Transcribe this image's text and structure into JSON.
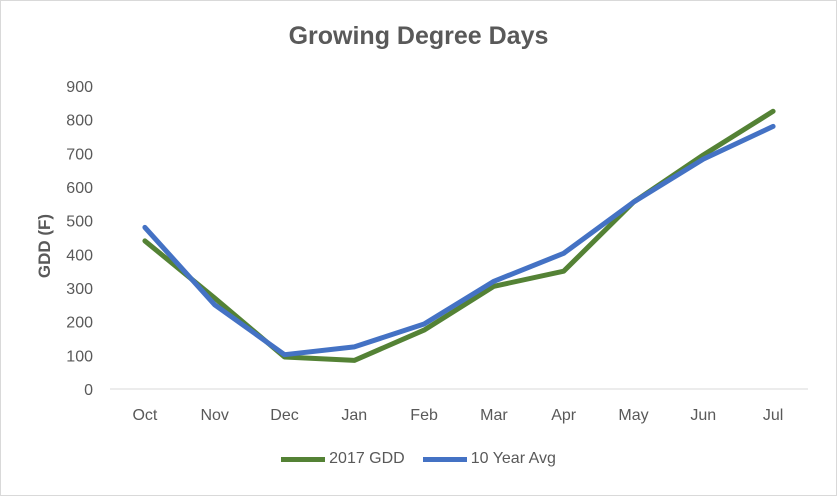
{
  "chart_data": {
    "type": "line",
    "title": "Growing Degree Days",
    "xlabel": "",
    "ylabel": "GDD (F)",
    "categories": [
      "Oct",
      "Nov",
      "Dec",
      "Jan",
      "Feb",
      "Mar",
      "Apr",
      "May",
      "Jun",
      "Jul"
    ],
    "yticks": [
      "0",
      "100",
      "200",
      "300",
      "400",
      "500",
      "600",
      "700",
      "800",
      "900"
    ],
    "ylim": [
      0,
      900
    ],
    "grid": false,
    "legend_position": "bottom",
    "series": [
      {
        "name": "2017 GDD",
        "color": "#548235",
        "values": [
          440,
          270,
          95,
          85,
          175,
          305,
          350,
          555,
          695,
          825
        ]
      },
      {
        "name": "10 Year Avg",
        "color": "#4472C4",
        "values": [
          480,
          250,
          102,
          125,
          193,
          320,
          403,
          555,
          683,
          780
        ]
      }
    ]
  }
}
